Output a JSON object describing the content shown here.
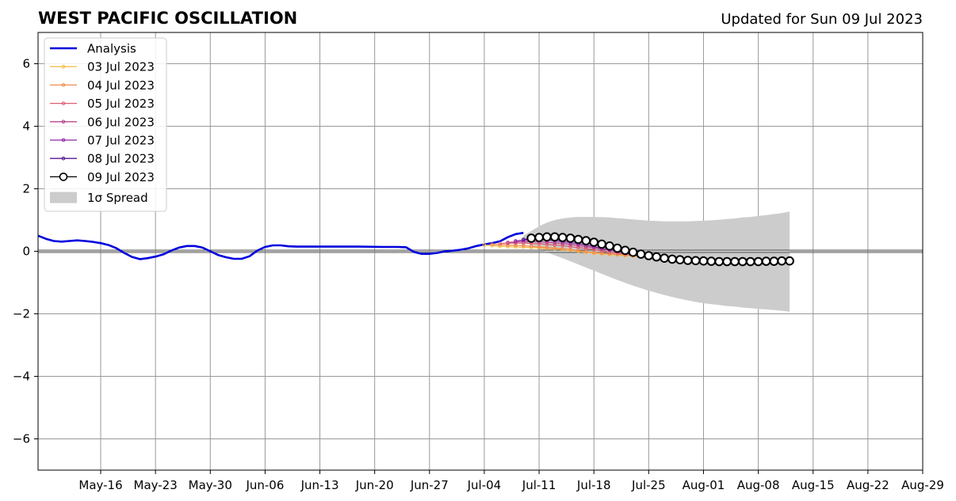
{
  "chart_data": {
    "type": "line",
    "title": "WEST PACIFIC OSCILLATION",
    "subtitle": "Updated for Sun 09 Jul 2023",
    "xlabel": "",
    "ylabel": "",
    "xlim": [
      "2023-05-08",
      "2023-08-29"
    ],
    "ylim": [
      -7,
      7
    ],
    "yticks": [
      -6,
      -4,
      -2,
      0,
      2,
      4,
      6
    ],
    "ytick_labels": [
      "−6",
      "−4",
      "−2",
      "0",
      "2",
      "4",
      "6"
    ],
    "xticks": [
      "2023-05-16",
      "2023-05-23",
      "2023-05-30",
      "2023-06-06",
      "2023-06-13",
      "2023-06-20",
      "2023-06-27",
      "2023-07-04",
      "2023-07-11",
      "2023-07-18",
      "2023-07-25",
      "2023-08-01",
      "2023-08-08",
      "2023-08-15",
      "2023-08-22",
      "2023-08-29"
    ],
    "xtick_labels": [
      "May-16",
      "May-23",
      "May-30",
      "Jun-06",
      "Jun-13",
      "Jun-20",
      "Jun-27",
      "Jul-04",
      "Jul-11",
      "Jul-18",
      "Jul-25",
      "Aug-01",
      "Aug-08",
      "Aug-15",
      "Aug-22",
      "Aug-29"
    ],
    "grid": true,
    "zero_line": true,
    "legend": {
      "position": "top-left",
      "entries": [
        "Analysis",
        "03 Jul 2023",
        "04 Jul 2023",
        "05 Jul 2023",
        "06 Jul 2023",
        "07 Jul 2023",
        "08 Jul 2023",
        "09 Jul 2023",
        "1σ Spread"
      ]
    },
    "colors": {
      "analysis": "#0000dd",
      "spread": "#cccccc",
      "grid": "#999999",
      "zero_line": "#555555",
      "latest_marker_fill": "#ffffff",
      "latest_marker_edge": "#000000"
    },
    "analysis": {
      "name": "Analysis",
      "x": [
        "2023-05-08",
        "2023-05-09",
        "2023-05-10",
        "2023-05-11",
        "2023-05-12",
        "2023-05-13",
        "2023-05-14",
        "2023-05-15",
        "2023-05-16",
        "2023-05-17",
        "2023-05-18",
        "2023-05-19",
        "2023-05-20",
        "2023-05-21",
        "2023-05-22",
        "2023-05-23",
        "2023-05-24",
        "2023-05-25",
        "2023-05-26",
        "2023-05-27",
        "2023-05-28",
        "2023-05-29",
        "2023-05-30",
        "2023-05-31",
        "2023-06-01",
        "2023-06-02",
        "2023-06-03",
        "2023-06-04",
        "2023-06-05",
        "2023-06-06",
        "2023-06-07",
        "2023-06-08",
        "2023-06-09",
        "2023-06-10",
        "2023-06-12",
        "2023-06-15",
        "2023-06-18",
        "2023-06-21",
        "2023-06-23",
        "2023-06-24",
        "2023-06-25",
        "2023-06-26",
        "2023-06-27",
        "2023-06-28",
        "2023-06-29",
        "2023-06-30",
        "2023-07-01",
        "2023-07-02",
        "2023-07-03",
        "2023-07-04",
        "2023-07-05",
        "2023-07-06",
        "2023-07-07",
        "2023-07-08",
        "2023-07-09"
      ],
      "y": [
        0.5,
        0.4,
        0.33,
        0.31,
        0.33,
        0.35,
        0.33,
        0.3,
        0.26,
        0.2,
        0.1,
        -0.05,
        -0.18,
        -0.25,
        -0.22,
        -0.17,
        -0.1,
        0.02,
        0.12,
        0.17,
        0.17,
        0.12,
        0.0,
        -0.12,
        -0.19,
        -0.24,
        -0.24,
        -0.16,
        0.02,
        0.14,
        0.19,
        0.19,
        0.16,
        0.15,
        0.15,
        0.15,
        0.15,
        0.14,
        0.14,
        0.13,
        -0.02,
        -0.08,
        -0.08,
        -0.05,
        0.0,
        0.02,
        0.05,
        0.1,
        0.17,
        0.22,
        0.26,
        0.32,
        0.45,
        0.55,
        0.59
      ]
    },
    "spread": {
      "name": "1σ Spread",
      "x": [
        "2023-07-09",
        "2023-07-10",
        "2023-07-11",
        "2023-07-12",
        "2023-07-13",
        "2023-07-14",
        "2023-07-15",
        "2023-07-16",
        "2023-07-17",
        "2023-07-18",
        "2023-07-19",
        "2023-07-20",
        "2023-07-21",
        "2023-07-22",
        "2023-07-23",
        "2023-07-24",
        "2023-07-25",
        "2023-07-26",
        "2023-07-27",
        "2023-07-28",
        "2023-07-29",
        "2023-07-30",
        "2023-07-31",
        "2023-08-01",
        "2023-08-02",
        "2023-08-03",
        "2023-08-04",
        "2023-08-05",
        "2023-08-06",
        "2023-08-07",
        "2023-08-08",
        "2023-08-09",
        "2023-08-10",
        "2023-08-11",
        "2023-08-12"
      ],
      "upper": [
        0.5,
        0.65,
        0.8,
        0.92,
        1.0,
        1.05,
        1.08,
        1.1,
        1.1,
        1.1,
        1.09,
        1.08,
        1.06,
        1.04,
        1.02,
        1.0,
        0.98,
        0.97,
        0.96,
        0.96,
        0.96,
        0.96,
        0.97,
        0.98,
        0.99,
        1.01,
        1.03,
        1.05,
        1.08,
        1.1,
        1.13,
        1.16,
        1.19,
        1.22,
        1.27
      ],
      "lower": [
        0.3,
        0.2,
        0.08,
        -0.03,
        -0.13,
        -0.22,
        -0.32,
        -0.42,
        -0.52,
        -0.62,
        -0.72,
        -0.82,
        -0.92,
        -1.01,
        -1.1,
        -1.18,
        -1.26,
        -1.33,
        -1.4,
        -1.46,
        -1.52,
        -1.57,
        -1.62,
        -1.66,
        -1.69,
        -1.72,
        -1.75,
        -1.77,
        -1.8,
        -1.82,
        -1.84,
        -1.86,
        -1.88,
        -1.9,
        -1.93
      ]
    },
    "forecasts": [
      {
        "name": "03 Jul 2023",
        "color": "#f7be4a",
        "start": "2023-07-04",
        "y": [
          0.2,
          0.18,
          0.16,
          0.15,
          0.14,
          0.13,
          0.12,
          0.11,
          0.1,
          0.08,
          0.06,
          0.03,
          0.0,
          -0.03,
          -0.06,
          -0.08,
          -0.1,
          -0.12,
          -0.14,
          -0.15,
          -0.17,
          -0.19
        ]
      },
      {
        "name": "04 Jul 2023",
        "color": "#f08c4c",
        "start": "2023-07-05",
        "y": [
          0.22,
          0.21,
          0.2,
          0.19,
          0.18,
          0.16,
          0.14,
          0.12,
          0.1,
          0.08,
          0.05,
          0.02,
          -0.01,
          -0.04,
          -0.06,
          -0.08,
          -0.1,
          -0.12,
          -0.14,
          -0.16,
          -0.18
        ]
      },
      {
        "name": "05 Jul 2023",
        "color": "#dc5f72",
        "start": "2023-07-06",
        "y": [
          0.25,
          0.26,
          0.26,
          0.26,
          0.25,
          0.24,
          0.22,
          0.2,
          0.18,
          0.15,
          0.12,
          0.09,
          0.05,
          0.01,
          -0.03,
          -0.06,
          -0.09,
          -0.12,
          -0.15,
          -0.18
        ]
      },
      {
        "name": "06 Jul 2023",
        "color": "#b8438f",
        "start": "2023-07-07",
        "y": [
          0.28,
          0.3,
          0.31,
          0.31,
          0.3,
          0.29,
          0.27,
          0.25,
          0.22,
          0.19,
          0.15,
          0.11,
          0.07,
          0.03,
          -0.01,
          -0.05,
          -0.09,
          -0.13,
          -0.17
        ]
      },
      {
        "name": "07 Jul 2023",
        "color": "#8e24a6",
        "start": "2023-07-08",
        "y": [
          0.33,
          0.36,
          0.37,
          0.37,
          0.36,
          0.34,
          0.31,
          0.28,
          0.24,
          0.2,
          0.15,
          0.1,
          0.05,
          0.0,
          -0.05,
          -0.1,
          -0.15,
          -0.19
        ]
      },
      {
        "name": "08 Jul 2023",
        "color": "#5a1690",
        "start": "2023-07-09",
        "y": [
          0.38,
          0.4,
          0.41,
          0.41,
          0.4,
          0.38,
          0.35,
          0.31,
          0.27,
          0.22,
          0.16,
          0.1,
          0.04,
          -0.02,
          -0.08,
          -0.13,
          -0.18
        ]
      },
      {
        "name": "09 Jul 2023",
        "color": "#000000",
        "start": "2023-07-10",
        "y": [
          0.42,
          0.44,
          0.46,
          0.46,
          0.44,
          0.42,
          0.38,
          0.34,
          0.29,
          0.23,
          0.17,
          0.1,
          0.03,
          -0.03,
          -0.09,
          -0.14,
          -0.18,
          -0.22,
          -0.25,
          -0.27,
          -0.29,
          -0.3,
          -0.31,
          -0.32,
          -0.33,
          -0.33,
          -0.33,
          -0.33,
          -0.33,
          -0.33,
          -0.32,
          -0.32,
          -0.31,
          -0.31
        ]
      }
    ]
  }
}
